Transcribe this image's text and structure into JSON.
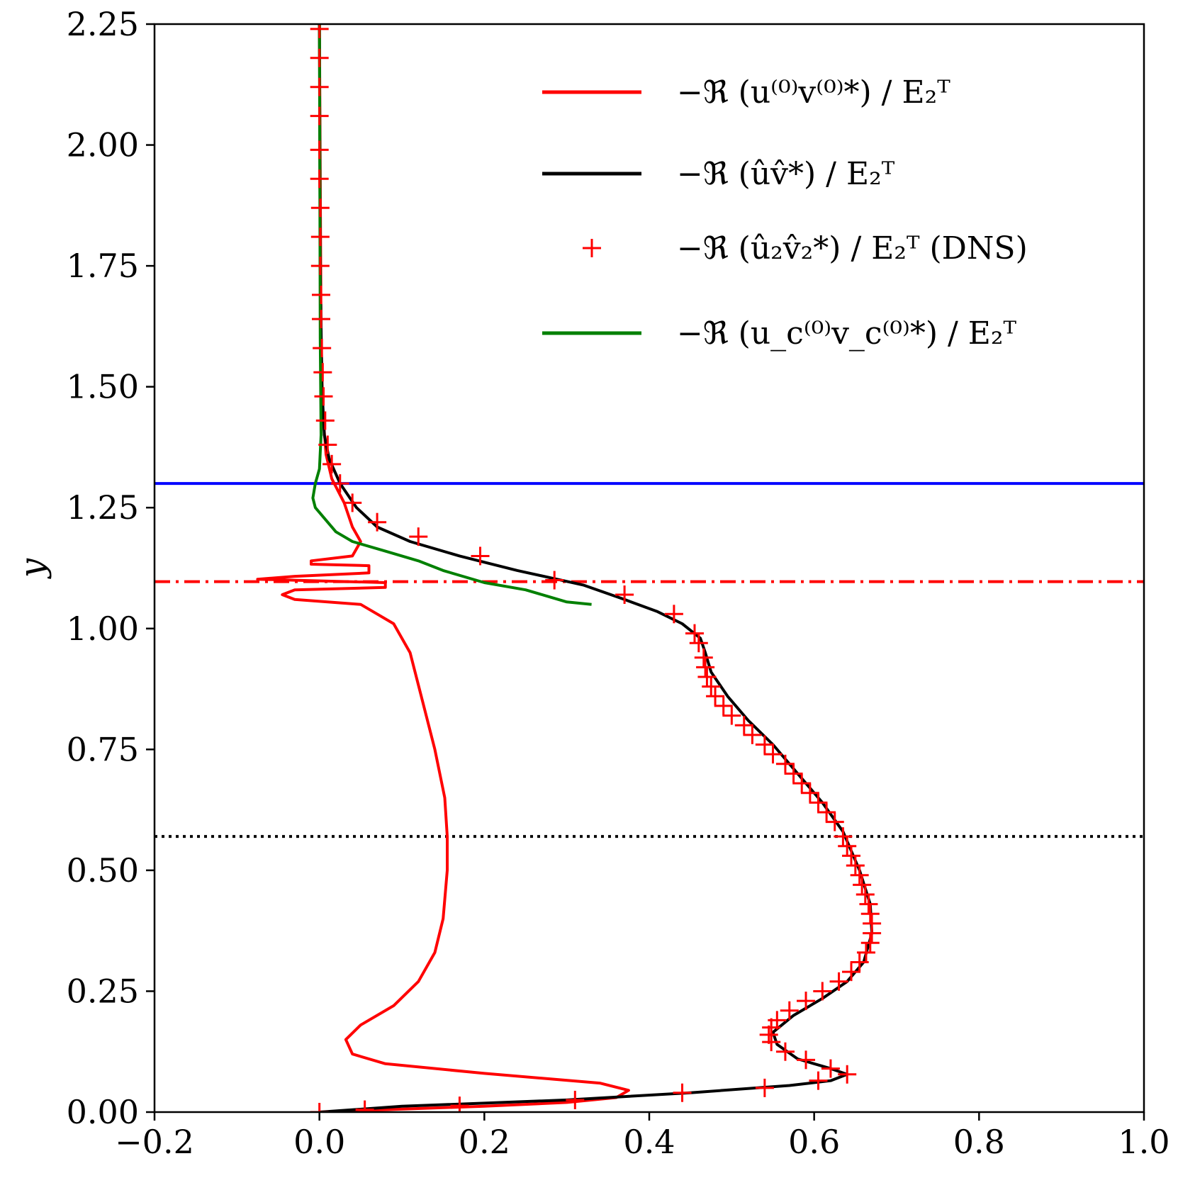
{
  "chart_data": {
    "type": "line",
    "title": "",
    "xlabel": "",
    "ylabel": "y",
    "xlim": [
      -0.2,
      1.0
    ],
    "ylim": [
      0.0,
      2.25
    ],
    "xticks": [
      -0.2,
      0.0,
      0.2,
      0.4,
      0.6,
      0.8,
      1.0
    ],
    "xtick_labels": [
      "−0.2",
      "0.0",
      "0.2",
      "0.4",
      "0.6",
      "0.8",
      "1.0"
    ],
    "yticks": [
      0.0,
      0.25,
      0.5,
      0.75,
      1.0,
      1.25,
      1.5,
      1.75,
      2.0,
      2.25
    ],
    "ytick_labels": [
      "0.00",
      "0.25",
      "0.50",
      "0.75",
      "1.00",
      "1.25",
      "1.50",
      "1.75",
      "2.00",
      "2.25"
    ],
    "grid": false,
    "legend_position": "top-right",
    "series": [
      {
        "name": "−ℜ (u⁽⁰⁾v⁽⁰⁾*) / E₂ᵀ",
        "style": "line",
        "color": "#ff0000",
        "points": [
          [
            0.0,
            0.0
          ],
          [
            0.08,
            0.005
          ],
          [
            0.2,
            0.012
          ],
          [
            0.3,
            0.02
          ],
          [
            0.36,
            0.03
          ],
          [
            0.375,
            0.045
          ],
          [
            0.34,
            0.06
          ],
          [
            0.2,
            0.08
          ],
          [
            0.08,
            0.1
          ],
          [
            0.04,
            0.12
          ],
          [
            0.032,
            0.15
          ],
          [
            0.05,
            0.18
          ],
          [
            0.09,
            0.22
          ],
          [
            0.12,
            0.27
          ],
          [
            0.14,
            0.33
          ],
          [
            0.15,
            0.4
          ],
          [
            0.155,
            0.5
          ],
          [
            0.155,
            0.57
          ],
          [
            0.152,
            0.65
          ],
          [
            0.14,
            0.75
          ],
          [
            0.125,
            0.85
          ],
          [
            0.11,
            0.95
          ],
          [
            0.09,
            1.01
          ],
          [
            0.07,
            1.03
          ],
          [
            0.05,
            1.05
          ],
          [
            -0.03,
            1.06
          ],
          [
            -0.045,
            1.07
          ],
          [
            -0.03,
            1.08
          ],
          [
            0.08,
            1.085
          ],
          [
            0.08,
            1.095
          ],
          [
            -0.03,
            1.1
          ],
          [
            -0.075,
            1.102
          ],
          [
            -0.03,
            1.108
          ],
          [
            0.06,
            1.115
          ],
          [
            0.06,
            1.13
          ],
          [
            -0.01,
            1.133
          ],
          [
            -0.01,
            1.14
          ],
          [
            0.04,
            1.15
          ],
          [
            0.05,
            1.18
          ],
          [
            0.04,
            1.21
          ],
          [
            0.03,
            1.26
          ],
          [
            0.015,
            1.31
          ],
          [
            0.008,
            1.36
          ],
          [
            0.004,
            1.45
          ],
          [
            0.002,
            1.6
          ],
          [
            0.0,
            2.25
          ]
        ]
      },
      {
        "name": "−ℜ (ûv̂*) / E₂ᵀ",
        "style": "line",
        "color": "#000000",
        "points": [
          [
            0.0,
            0.0
          ],
          [
            0.1,
            0.012
          ],
          [
            0.3,
            0.025
          ],
          [
            0.45,
            0.04
          ],
          [
            0.57,
            0.055
          ],
          [
            0.62,
            0.065
          ],
          [
            0.64,
            0.078
          ],
          [
            0.62,
            0.09
          ],
          [
            0.58,
            0.11
          ],
          [
            0.555,
            0.14
          ],
          [
            0.55,
            0.165
          ],
          [
            0.575,
            0.2
          ],
          [
            0.61,
            0.235
          ],
          [
            0.64,
            0.27
          ],
          [
            0.66,
            0.31
          ],
          [
            0.67,
            0.37
          ],
          [
            0.668,
            0.43
          ],
          [
            0.655,
            0.5
          ],
          [
            0.635,
            0.58
          ],
          [
            0.61,
            0.64
          ],
          [
            0.58,
            0.7
          ],
          [
            0.55,
            0.76
          ],
          [
            0.52,
            0.81
          ],
          [
            0.495,
            0.86
          ],
          [
            0.475,
            0.91
          ],
          [
            0.468,
            0.95
          ],
          [
            0.462,
            0.98
          ],
          [
            0.44,
            1.01
          ],
          [
            0.41,
            1.035
          ],
          [
            0.37,
            1.06
          ],
          [
            0.32,
            1.09
          ],
          [
            0.24,
            1.12
          ],
          [
            0.17,
            1.15
          ],
          [
            0.11,
            1.18
          ],
          [
            0.07,
            1.21
          ],
          [
            0.045,
            1.25
          ],
          [
            0.025,
            1.3
          ],
          [
            0.012,
            1.35
          ],
          [
            0.006,
            1.4
          ],
          [
            0.003,
            1.5
          ],
          [
            0.001,
            1.75
          ],
          [
            0.0,
            2.25
          ]
        ]
      },
      {
        "name": "−ℜ (û₂v̂₂*) / E₂ᵀ (DNS)",
        "style": "markers",
        "marker": "+",
        "color": "#ff0000",
        "points": [
          [
            0.0,
            0.0
          ],
          [
            0.055,
            0.005
          ],
          [
            0.17,
            0.013
          ],
          [
            0.31,
            0.025
          ],
          [
            0.44,
            0.04
          ],
          [
            0.54,
            0.05
          ],
          [
            0.605,
            0.065
          ],
          [
            0.64,
            0.078
          ],
          [
            0.62,
            0.09
          ],
          [
            0.59,
            0.108
          ],
          [
            0.565,
            0.125
          ],
          [
            0.548,
            0.145
          ],
          [
            0.545,
            0.16
          ],
          [
            0.548,
            0.175
          ],
          [
            0.555,
            0.19
          ],
          [
            0.57,
            0.21
          ],
          [
            0.59,
            0.23
          ],
          [
            0.61,
            0.25
          ],
          [
            0.63,
            0.27
          ],
          [
            0.645,
            0.29
          ],
          [
            0.655,
            0.31
          ],
          [
            0.663,
            0.33
          ],
          [
            0.668,
            0.35
          ],
          [
            0.67,
            0.37
          ],
          [
            0.67,
            0.39
          ],
          [
            0.668,
            0.41
          ],
          [
            0.666,
            0.43
          ],
          [
            0.662,
            0.45
          ],
          [
            0.658,
            0.47
          ],
          [
            0.655,
            0.49
          ],
          [
            0.65,
            0.51
          ],
          [
            0.645,
            0.53
          ],
          [
            0.64,
            0.55
          ],
          [
            0.635,
            0.57
          ],
          [
            0.625,
            0.6
          ],
          [
            0.615,
            0.62
          ],
          [
            0.605,
            0.64
          ],
          [
            0.595,
            0.66
          ],
          [
            0.585,
            0.68
          ],
          [
            0.575,
            0.7
          ],
          [
            0.565,
            0.72
          ],
          [
            0.55,
            0.74
          ],
          [
            0.54,
            0.76
          ],
          [
            0.525,
            0.78
          ],
          [
            0.515,
            0.8
          ],
          [
            0.5,
            0.82
          ],
          [
            0.49,
            0.84
          ],
          [
            0.48,
            0.86
          ],
          [
            0.475,
            0.88
          ],
          [
            0.47,
            0.9
          ],
          [
            0.468,
            0.92
          ],
          [
            0.466,
            0.94
          ],
          [
            0.46,
            0.97
          ],
          [
            0.455,
            0.99
          ],
          [
            0.43,
            1.03
          ],
          [
            0.37,
            1.07
          ],
          [
            0.285,
            1.1
          ],
          [
            0.195,
            1.15
          ],
          [
            0.12,
            1.19
          ],
          [
            0.07,
            1.22
          ],
          [
            0.04,
            1.26
          ],
          [
            0.025,
            1.3
          ],
          [
            0.015,
            1.34
          ],
          [
            0.01,
            1.38
          ],
          [
            0.007,
            1.43
          ],
          [
            0.005,
            1.48
          ],
          [
            0.004,
            1.53
          ],
          [
            0.003,
            1.58
          ],
          [
            0.002,
            1.64
          ],
          [
            0.002,
            1.69
          ],
          [
            0.001,
            1.75
          ],
          [
            0.001,
            1.81
          ],
          [
            0.001,
            1.87
          ],
          [
            0.0,
            1.93
          ],
          [
            0.0,
            1.99
          ],
          [
            0.0,
            2.06
          ],
          [
            0.0,
            2.12
          ],
          [
            0.0,
            2.18
          ],
          [
            0.0,
            2.24
          ]
        ]
      },
      {
        "name": "−ℜ (u_c⁽⁰⁾v_c⁽⁰⁾*) / E₂ᵀ",
        "style": "line",
        "color": "#008000",
        "points": [
          [
            0.33,
            1.05
          ],
          [
            0.3,
            1.055
          ],
          [
            0.28,
            1.065
          ],
          [
            0.25,
            1.08
          ],
          [
            0.2,
            1.095
          ],
          [
            0.15,
            1.12
          ],
          [
            0.12,
            1.14
          ],
          [
            0.08,
            1.16
          ],
          [
            0.04,
            1.18
          ],
          [
            0.02,
            1.2
          ],
          [
            0.01,
            1.22
          ],
          [
            -0.005,
            1.25
          ],
          [
            -0.008,
            1.27
          ],
          [
            -0.005,
            1.3
          ],
          [
            0.0,
            1.33
          ],
          [
            0.002,
            1.4
          ],
          [
            0.001,
            1.6
          ],
          [
            0.0,
            2.25
          ]
        ]
      }
    ],
    "reference_lines": [
      {
        "orientation": "horizontal",
        "y": 1.3,
        "color": "#0000ff",
        "style": "solid"
      },
      {
        "orientation": "horizontal",
        "y": 1.097,
        "color": "#ff0000",
        "style": "dashdot"
      },
      {
        "orientation": "horizontal",
        "y": 0.57,
        "color": "#000000",
        "style": "dotted"
      }
    ],
    "legend": {
      "entries": [
        {
          "symbol": "line",
          "color": "#ff0000"
        },
        {
          "symbol": "line",
          "color": "#000000"
        },
        {
          "symbol": "plus",
          "color": "#ff0000"
        },
        {
          "symbol": "line",
          "color": "#008000"
        }
      ]
    }
  }
}
